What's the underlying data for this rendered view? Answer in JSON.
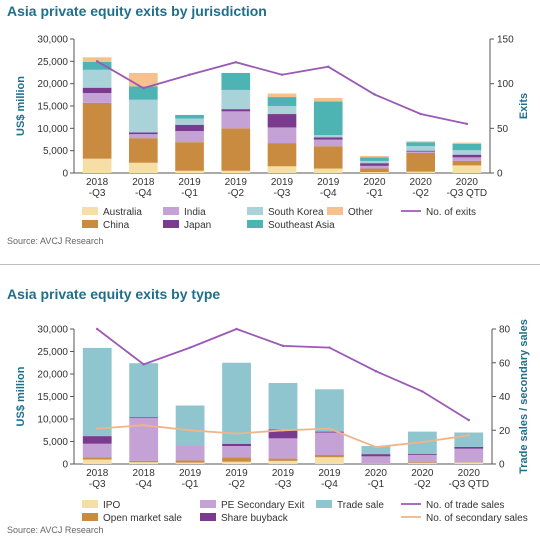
{
  "chart_data": [
    {
      "type": "bar",
      "title": "Asia private equity exits by jurisdiction",
      "ylabel": "US$ million",
      "y2label": "Exits",
      "ylim": [
        0,
        30000
      ],
      "y2lim": [
        0,
        150
      ],
      "yticks": [
        "0",
        "5,000",
        "10,000",
        "15,000",
        "20,000",
        "25,000",
        "30,000"
      ],
      "y2ticks": [
        "0",
        "50",
        "100",
        "150"
      ],
      "categories": [
        [
          "2018",
          "-Q3"
        ],
        [
          "2018",
          "-Q4"
        ],
        [
          "2019",
          "-Q1"
        ],
        [
          "2019",
          "-Q2"
        ],
        [
          "2019",
          "-Q3"
        ],
        [
          "2019",
          "-Q4"
        ],
        [
          "2020",
          "-Q1"
        ],
        [
          "2020",
          "-Q2"
        ],
        [
          "2020",
          "-Q3 QTD"
        ]
      ],
      "series": [
        {
          "name": "Australia",
          "color": "#f5dfa6",
          "values": [
            3200,
            2300,
            500,
            500,
            1500,
            1000,
            200,
            300,
            1700
          ]
        },
        {
          "name": "China",
          "color": "#c98b3f",
          "values": [
            12500,
            5500,
            6400,
            9500,
            5200,
            5000,
            800,
            4200,
            1000
          ]
        },
        {
          "name": "India",
          "color": "#c4a2d6",
          "values": [
            2200,
            900,
            2500,
            3800,
            3500,
            1500,
            600,
            300,
            800
          ]
        },
        {
          "name": "Japan",
          "color": "#7a3b8f",
          "values": [
            1200,
            400,
            1400,
            500,
            3000,
            500,
            600,
            200,
            600
          ]
        },
        {
          "name": "South Korea",
          "color": "#a9d2d9",
          "values": [
            4000,
            7300,
            1400,
            4300,
            1800,
            500,
            500,
            1000,
            1000
          ]
        },
        {
          "name": "Southeast Asia",
          "color": "#4db3b3",
          "values": [
            1800,
            3000,
            800,
            3800,
            2000,
            7500,
            800,
            900,
            1400
          ]
        },
        {
          "name": "Other",
          "color": "#f7c08f",
          "values": [
            1000,
            3000,
            0,
            0,
            800,
            800,
            300,
            200,
            300
          ]
        }
      ],
      "line": {
        "name": "No. of exits",
        "color": "#9b59b6",
        "axis": "right",
        "values": [
          125,
          95,
          110,
          124,
          110,
          119,
          88,
          66,
          55
        ]
      },
      "legend": [
        "Australia",
        "India",
        "South Korea",
        "Other",
        "No. of exits",
        "China",
        "Japan",
        "Southeast Asia"
      ],
      "legend_position": "bottom",
      "source": "Source: AVCJ Research"
    },
    {
      "type": "bar",
      "title": "Asia private equity exits by type",
      "ylabel": "US$ million",
      "y2label": "Trade sales / secondary sales",
      "ylim": [
        0,
        30000
      ],
      "y2lim": [
        0,
        80
      ],
      "yticks": [
        "0",
        "5,000",
        "10,000",
        "15,000",
        "20,000",
        "25,000",
        "30,000"
      ],
      "y2ticks": [
        "0",
        "20",
        "40",
        "60",
        "80"
      ],
      "categories": [
        [
          "2018",
          "-Q3"
        ],
        [
          "2018",
          "-Q4"
        ],
        [
          "2019",
          "-Q1"
        ],
        [
          "2019",
          "-Q2"
        ],
        [
          "2019",
          "-Q3"
        ],
        [
          "2019",
          "-Q4"
        ],
        [
          "2020",
          "-Q1"
        ],
        [
          "2020",
          "-Q2"
        ],
        [
          "2020",
          "-Q3 QTD"
        ]
      ],
      "series": [
        {
          "name": "IPO",
          "color": "#f5dfa6",
          "values": [
            1000,
            400,
            300,
            500,
            700,
            1500,
            100,
            200,
            300
          ]
        },
        {
          "name": "Open market sale",
          "color": "#c98b3f",
          "values": [
            500,
            300,
            500,
            1000,
            500,
            500,
            100,
            200,
            100
          ]
        },
        {
          "name": "PE Secondary Exit",
          "color": "#c4a2d6",
          "values": [
            3000,
            9500,
            3200,
            2500,
            4500,
            5000,
            1500,
            1600,
            3000
          ]
        },
        {
          "name": "Share buyback",
          "color": "#7a3b8f",
          "values": [
            1700,
            200,
            0,
            500,
            2000,
            200,
            500,
            200,
            400
          ]
        },
        {
          "name": "Trade sale",
          "color": "#8fc5ce",
          "values": [
            19600,
            12000,
            9000,
            18000,
            10300,
            9400,
            1800,
            5000,
            3200
          ]
        }
      ],
      "lines": [
        {
          "name": "No. of trade sales",
          "color": "#9b59b6",
          "axis": "right",
          "values": [
            80,
            59,
            69,
            80,
            70,
            69,
            55,
            43,
            26
          ]
        },
        {
          "name": "No. of secondary sales",
          "color": "#f0b48a",
          "axis": "right",
          "values": [
            21,
            23,
            20,
            18,
            20,
            21,
            10,
            13,
            17
          ]
        }
      ],
      "legend": [
        "IPO",
        "PE Secondary Exit",
        "Trade sale",
        "No. of trade sales",
        "Open market sale",
        "Share buyback",
        "No. of secondary sales"
      ],
      "legend_position": "bottom",
      "source": "Source: AVCJ Research"
    }
  ]
}
